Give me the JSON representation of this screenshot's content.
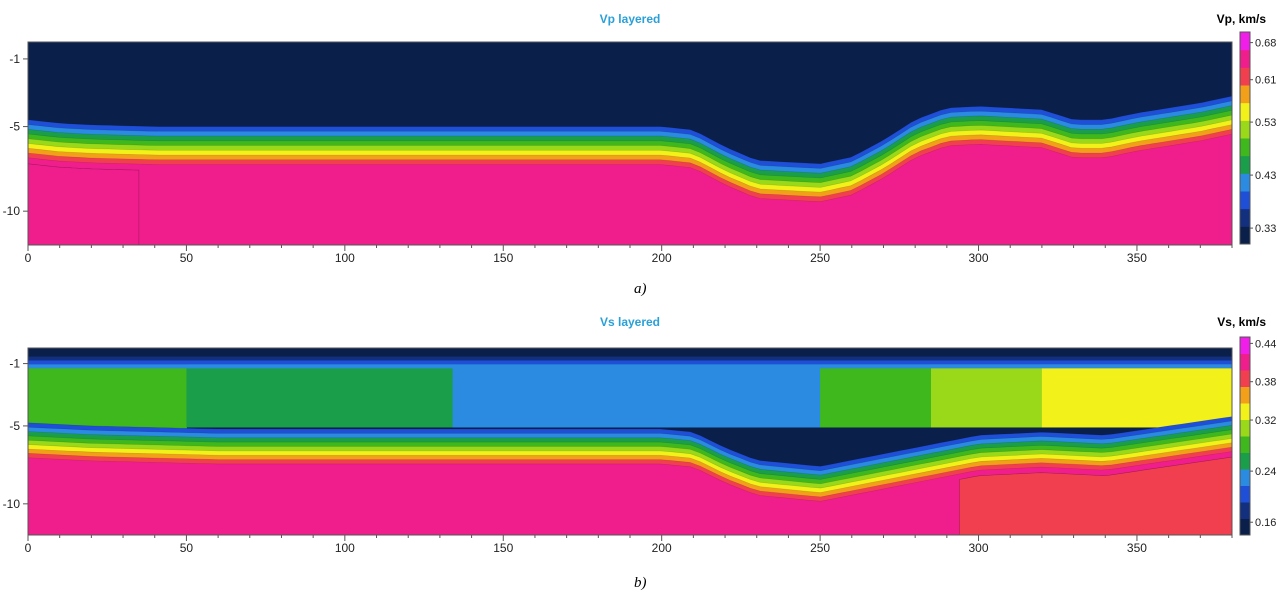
{
  "captions": {
    "a": "a)",
    "b": "b)"
  },
  "chart_data": [
    {
      "type": "heatmap",
      "title": "Vp layered",
      "colorbar_label": "Vp, km/s",
      "colorbar_ticks": [
        0.68,
        0.61,
        0.53,
        0.43,
        0.33
      ],
      "colorbar_range": [
        0.3,
        0.7
      ],
      "xlim": [
        0,
        380
      ],
      "ylim": [
        -12,
        0
      ],
      "x_ticks": [
        0,
        50,
        100,
        150,
        200,
        250,
        300,
        350
      ],
      "y_ticks": [
        -1,
        -5,
        -10
      ],
      "colors": [
        "#0b1f4b",
        "#12307e",
        "#1e4fd6",
        "#2a8be0",
        "#1a9e4a",
        "#3fb81d",
        "#9ad81a",
        "#f2f21a",
        "#f2a01a",
        "#f23f50",
        "#f01e8c",
        "#f01ee8"
      ],
      "profile": {
        "x": [
          0,
          10,
          20,
          40,
          60,
          80,
          100,
          150,
          200,
          210,
          220,
          230,
          250,
          260,
          270,
          280,
          290,
          300,
          320,
          330,
          340,
          350,
          370,
          380
        ],
        "top_depth": [
          -4.6,
          -4.8,
          -4.9,
          -5.0,
          -5.0,
          -5.0,
          -5.0,
          -5.0,
          -5.0,
          -5.2,
          -6.2,
          -7.0,
          -7.2,
          -6.8,
          -5.8,
          -4.6,
          -3.9,
          -3.8,
          -4.0,
          -4.6,
          -4.6,
          -4.2,
          -3.6,
          -3.2
        ]
      },
      "regions": [
        {
          "x0": 0,
          "x1": 35,
          "value": 0.64
        }
      ]
    },
    {
      "type": "heatmap",
      "title": "Vs layered",
      "colorbar_label": "Vs, km/s",
      "colorbar_ticks": [
        0.44,
        0.38,
        0.32,
        0.24,
        0.16
      ],
      "colorbar_range": [
        0.14,
        0.45
      ],
      "xlim": [
        0,
        380
      ],
      "ylim": [
        -12,
        0
      ],
      "x_ticks": [
        0,
        50,
        100,
        150,
        200,
        250,
        300,
        350
      ],
      "y_ticks": [
        -1,
        -5,
        -10
      ],
      "colors": [
        "#0b1f4b",
        "#12307e",
        "#1e4fd6",
        "#2a8be0",
        "#1a9e4a",
        "#3fb81d",
        "#9ad81a",
        "#f2f21a",
        "#f2a01a",
        "#f23f50",
        "#f01e8c",
        "#f01ee8"
      ],
      "blocks": [
        {
          "x0": 0,
          "x1": 50,
          "value": 0.29
        },
        {
          "x0": 50,
          "x1": 134,
          "value": 0.25
        },
        {
          "x0": 134,
          "x1": 212,
          "value": 0.22
        },
        {
          "x0": 212,
          "x1": 250,
          "value": 0.24
        },
        {
          "x0": 250,
          "x1": 285,
          "value": 0.28
        },
        {
          "x0": 285,
          "x1": 320,
          "value": 0.31
        },
        {
          "x0": 320,
          "x1": 380,
          "value": 0.34
        }
      ],
      "profile": {
        "x": [
          0,
          20,
          40,
          60,
          100,
          150,
          200,
          210,
          220,
          230,
          250,
          260,
          270,
          280,
          290,
          300,
          320,
          340,
          360,
          380
        ],
        "top_depth": [
          -4.8,
          -5.0,
          -5.1,
          -5.2,
          -5.2,
          -5.2,
          -5.2,
          -5.4,
          -6.4,
          -7.2,
          -7.6,
          -7.2,
          -6.8,
          -6.4,
          -6.0,
          -5.6,
          -5.4,
          -5.6,
          -5.0,
          -4.4
        ]
      },
      "regions": [
        {
          "x0": 294,
          "x1": 380,
          "value": 0.39
        }
      ]
    }
  ]
}
